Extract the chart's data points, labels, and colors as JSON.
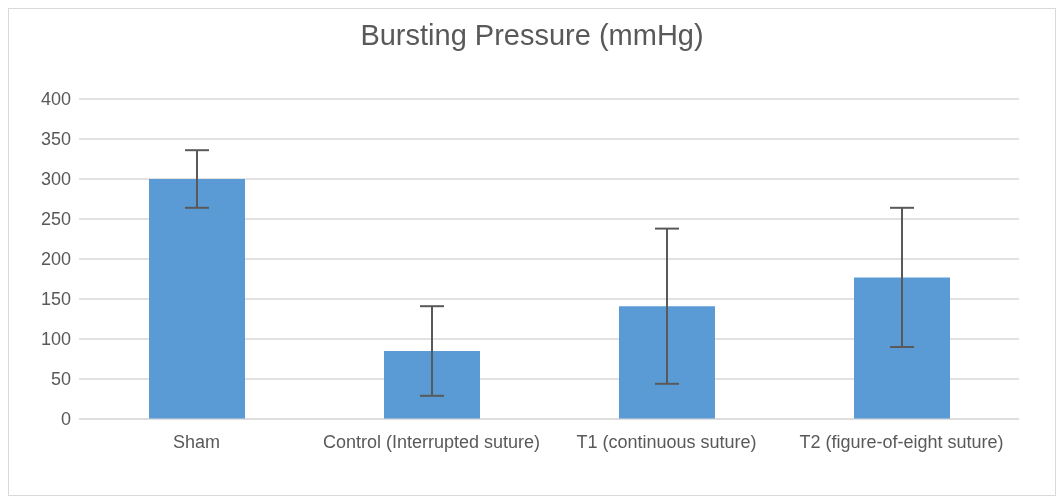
{
  "chart_data": {
    "type": "bar",
    "title": "Bursting Pressure (mmHg)",
    "categories": [
      "Sham",
      "Control (Interrupted suture)",
      "T1 (continuous suture)",
      "T2 (figure-of-eight suture)"
    ],
    "values": [
      300,
      85,
      141,
      177
    ],
    "errors": [
      36,
      56,
      97,
      87
    ],
    "color": "#5b9bd5",
    "ylim": [
      0,
      400
    ],
    "yticks": [
      0,
      50,
      100,
      150,
      200,
      250,
      300,
      350,
      400
    ],
    "grid": "y",
    "legend": false
  }
}
